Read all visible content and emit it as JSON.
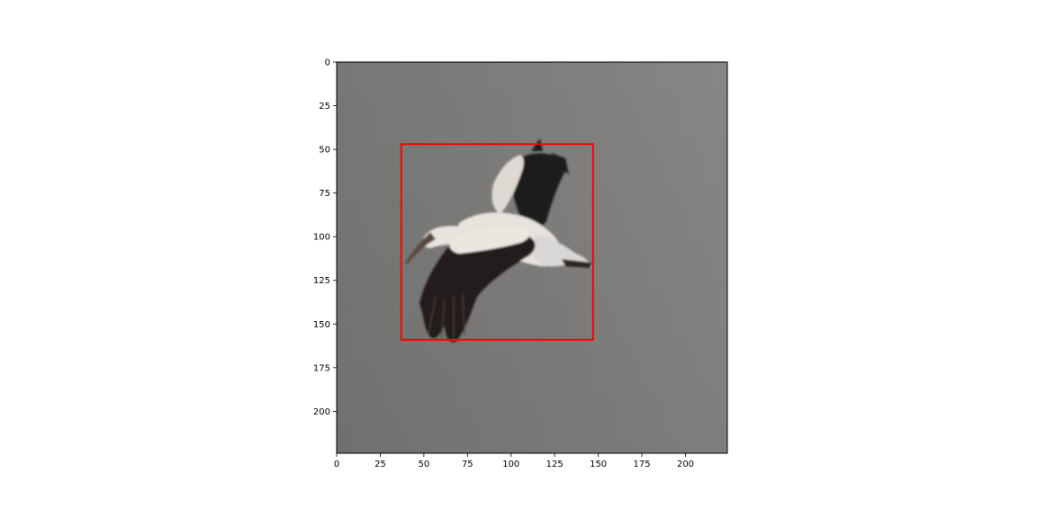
{
  "chart_data": {
    "type": "image-with-bounding-box",
    "image_subject": "stork in flight",
    "image_width": 224,
    "image_height": 224,
    "xlim": [
      0,
      224
    ],
    "ylim": [
      224,
      0
    ],
    "y_axis_inverted": true,
    "x_ticks": [
      0,
      25,
      50,
      75,
      100,
      125,
      150,
      175,
      200
    ],
    "y_ticks": [
      0,
      25,
      50,
      75,
      100,
      125,
      150,
      175,
      200
    ],
    "x_tick_labels": [
      "0",
      "25",
      "50",
      "75",
      "100",
      "125",
      "150",
      "175",
      "200"
    ],
    "y_tick_labels": [
      "0",
      "25",
      "50",
      "75",
      "100",
      "125",
      "150",
      "175",
      "200"
    ],
    "grid": false,
    "bounding_box": {
      "x_min": 37,
      "y_min": 47,
      "x_max": 147,
      "y_max": 159,
      "color": "#ff0000"
    },
    "background_color": "#868584"
  }
}
